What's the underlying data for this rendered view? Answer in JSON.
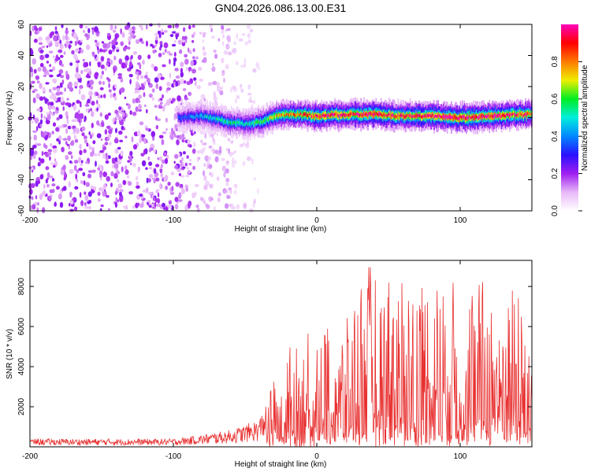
{
  "title": "GN04.2026.086.13.00.E31",
  "chart_data": [
    {
      "type": "heatmap",
      "xlabel": "Height of straight line (km)",
      "ylabel": "Frequency (Hz)",
      "xlim": [
        -200,
        150
      ],
      "ylim": [
        -60,
        60
      ],
      "xticks": [
        -200,
        -100,
        0,
        100
      ],
      "yticks": [
        -60,
        -40,
        -20,
        0,
        20,
        40,
        60
      ],
      "colorbar": {
        "label": "Normalized spectral amplitude",
        "range": [
          0,
          1
        ],
        "ticks": [
          0.0,
          0.2,
          0.4,
          0.6,
          0.8
        ],
        "tick_labels": [
          "0.0",
          "0.2",
          "0.4",
          "0.6",
          "0.8"
        ],
        "colors": [
          "#ffffff",
          "#e8b8f8",
          "#9f1ff0",
          "#2a10ff",
          "#0088ff",
          "#00eedd",
          "#00ee22",
          "#eeee00",
          "#ff7a00",
          "#ff0000",
          "#ff00bb"
        ]
      },
      "noise_region": {
        "x_range": [
          -200,
          -40
        ],
        "y_range": [
          -60,
          60
        ],
        "amplitude": 0.15
      },
      "signal_band": {
        "x": [
          -97,
          -80,
          -70,
          -60,
          -50,
          -40,
          -30,
          -20,
          -10,
          0,
          20,
          40,
          60,
          80,
          100,
          120,
          140,
          150
        ],
        "freq": [
          0,
          1,
          -1,
          -3,
          -4,
          -3,
          1,
          2,
          2,
          1,
          2,
          2,
          1,
          1,
          0,
          1,
          2,
          2
        ],
        "peak_amplitude": [
          0.35,
          0.45,
          0.5,
          0.55,
          0.5,
          0.6,
          0.7,
          0.8,
          0.85,
          0.9,
          0.9,
          0.95,
          0.9,
          0.95,
          1.0,
          0.95,
          0.9,
          0.85
        ]
      },
      "grid": false,
      "grid_note": "no grid; ticks on all four sides"
    },
    {
      "type": "line",
      "xlabel": "Height of straight line (km)",
      "ylabel": "SNR (10 * v/v)",
      "xlim": [
        -200,
        150
      ],
      "ylim": [
        0,
        9300
      ],
      "xticks": [
        -200,
        -100,
        0,
        100
      ],
      "yticks": [
        2000,
        4000,
        6000,
        8000
      ],
      "color": "#e83030",
      "series_envelope": {
        "x": [
          -200,
          -150,
          -100,
          -80,
          -60,
          -50,
          -40,
          -30,
          -25,
          -20,
          -10,
          0,
          10,
          20,
          30,
          40,
          50,
          60,
          70,
          80,
          90,
          100,
          110,
          120,
          130,
          140,
          150
        ],
        "max": [
          400,
          400,
          400,
          600,
          850,
          1100,
          1400,
          3400,
          2700,
          5200,
          5000,
          7000,
          6400,
          6100,
          8800,
          9300,
          8800,
          8600,
          8700,
          8600,
          8500,
          8200,
          8500,
          8300,
          7700,
          8200,
          5300
        ]
      },
      "grid": false
    }
  ]
}
